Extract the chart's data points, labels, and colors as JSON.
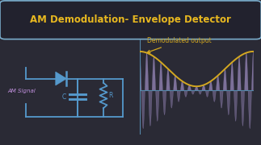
{
  "bg_color": "#2a2a35",
  "title": "AM Demodulation- Envelope Detector",
  "title_color": "#e8b820",
  "title_border_color": "#7aadcc",
  "title_bg": "#22222e",
  "am_signal_label": "AM Signal",
  "demod_label": "Demodulated output",
  "circuit_color": "#5599cc",
  "signal_color": "#9988bb",
  "envelope_color": "#d4a820",
  "axis_color": "#5588aa",
  "title_fontsize": 8.5,
  "label_fontsize": 5.0,
  "demod_fontsize": 5.5,
  "figsize": [
    3.2,
    1.8
  ],
  "dpi": 100
}
